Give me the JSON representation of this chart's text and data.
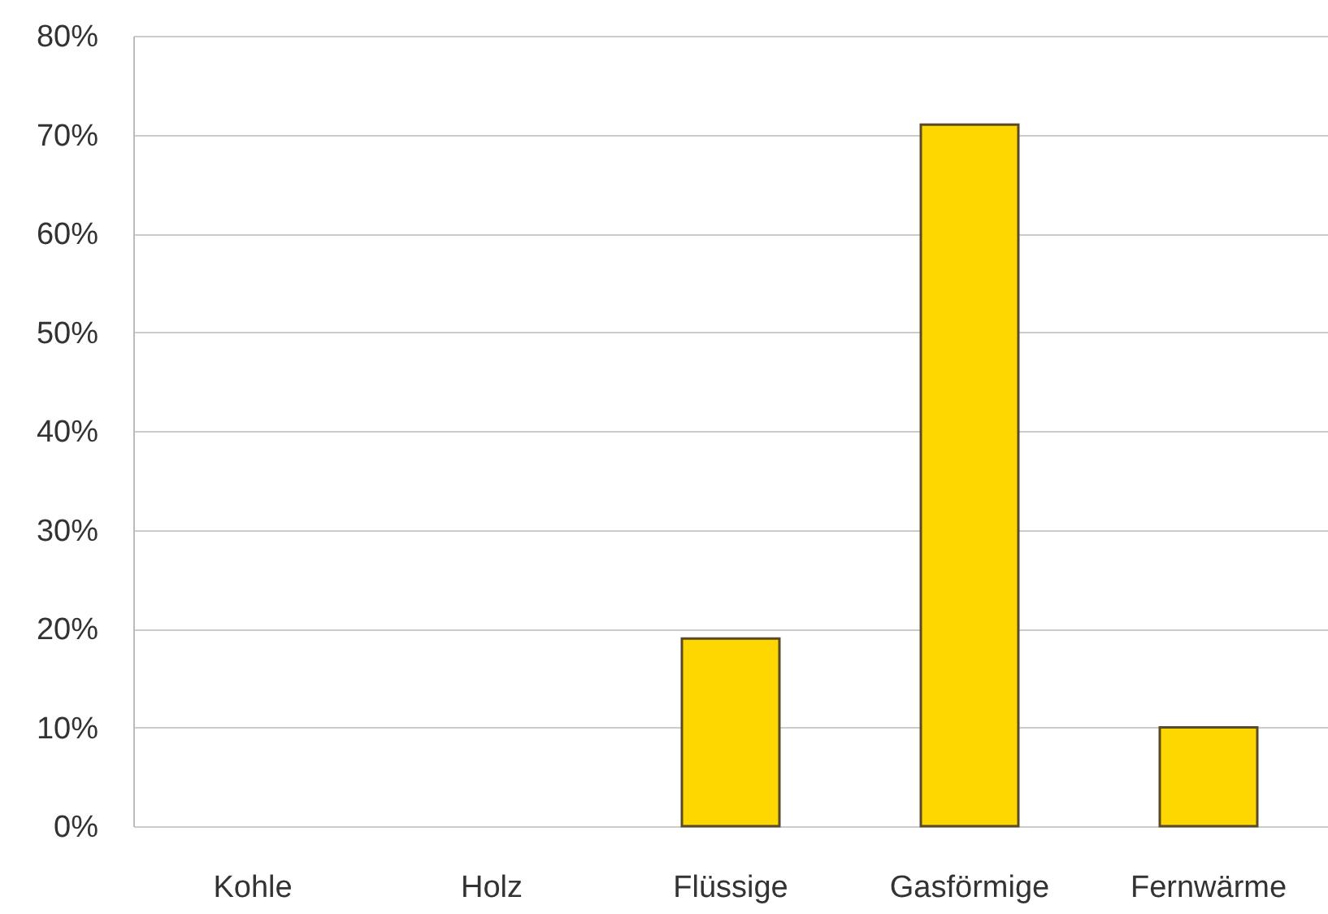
{
  "chart_data": {
    "type": "bar",
    "categories": [
      "Kohle",
      "Holz",
      "Flüssige",
      "Gasförmige",
      "Fernwärme"
    ],
    "values": [
      0,
      0,
      19,
      71,
      10
    ],
    "color": "#ffd700",
    "ylim": [
      0,
      80
    ],
    "yticks": [
      {
        "value": 0,
        "label": "0%"
      },
      {
        "value": 10,
        "label": "10%"
      },
      {
        "value": 20,
        "label": "20%"
      },
      {
        "value": 30,
        "label": "30%"
      },
      {
        "value": 40,
        "label": "40%"
      },
      {
        "value": 50,
        "label": "50%"
      },
      {
        "value": 60,
        "label": "60%"
      },
      {
        "value": 70,
        "label": "70%"
      },
      {
        "value": 80,
        "label": "80%"
      }
    ],
    "grid": "y"
  }
}
